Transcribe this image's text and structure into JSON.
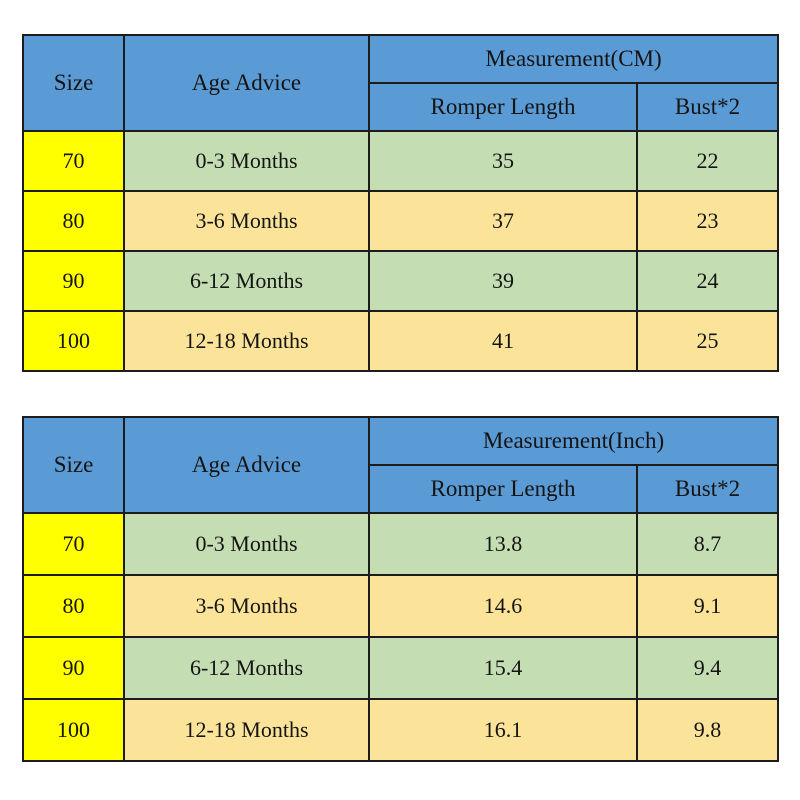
{
  "colors": {
    "header_blue": "#5b9bd5",
    "size_yellow": "#ffff00",
    "row_green": "#c4ddb2",
    "row_tan": "#fbe499",
    "border": "#1c1c1c",
    "background": "#ffffff"
  },
  "tables": [
    {
      "headers": {
        "size": "Size",
        "age": "Age Advice",
        "measurement": "Measurement(CM)",
        "col1": "Romper Length",
        "col2": "Bust*2"
      },
      "rows": [
        {
          "size": "70",
          "age": "0-3 Months",
          "length": "35",
          "bust": "22"
        },
        {
          "size": "80",
          "age": "3-6 Months",
          "length": "37",
          "bust": "23"
        },
        {
          "size": "90",
          "age": "6-12 Months",
          "length": "39",
          "bust": "24"
        },
        {
          "size": "100",
          "age": "12-18 Months",
          "length": "41",
          "bust": "25"
        }
      ]
    },
    {
      "headers": {
        "size": "Size",
        "age": "Age Advice",
        "measurement": "Measurement(Inch)",
        "col1": "Romper Length",
        "col2": "Bust*2"
      },
      "rows": [
        {
          "size": "70",
          "age": "0-3 Months",
          "length": "13.8",
          "bust": "8.7"
        },
        {
          "size": "80",
          "age": "3-6 Months",
          "length": "14.6",
          "bust": "9.1"
        },
        {
          "size": "90",
          "age": "6-12 Months",
          "length": "15.4",
          "bust": "9.4"
        },
        {
          "size": "100",
          "age": "12-18 Months",
          "length": "16.1",
          "bust": "9.8"
        }
      ]
    }
  ],
  "chart_data": [
    {
      "type": "table",
      "title": "Measurement(CM)",
      "columns": [
        "Size",
        "Age Advice",
        "Romper Length",
        "Bust*2"
      ],
      "rows": [
        [
          "70",
          "0-3 Months",
          35,
          22
        ],
        [
          "80",
          "3-6 Months",
          37,
          23
        ],
        [
          "90",
          "6-12 Months",
          39,
          24
        ],
        [
          "100",
          "12-18 Months",
          41,
          25
        ]
      ]
    },
    {
      "type": "table",
      "title": "Measurement(Inch)",
      "columns": [
        "Size",
        "Age Advice",
        "Romper Length",
        "Bust*2"
      ],
      "rows": [
        [
          "70",
          "0-3 Months",
          13.8,
          8.7
        ],
        [
          "80",
          "3-6 Months",
          14.6,
          9.1
        ],
        [
          "90",
          "6-12 Months",
          15.4,
          9.4
        ],
        [
          "100",
          "12-18 Months",
          16.1,
          9.8
        ]
      ]
    }
  ]
}
